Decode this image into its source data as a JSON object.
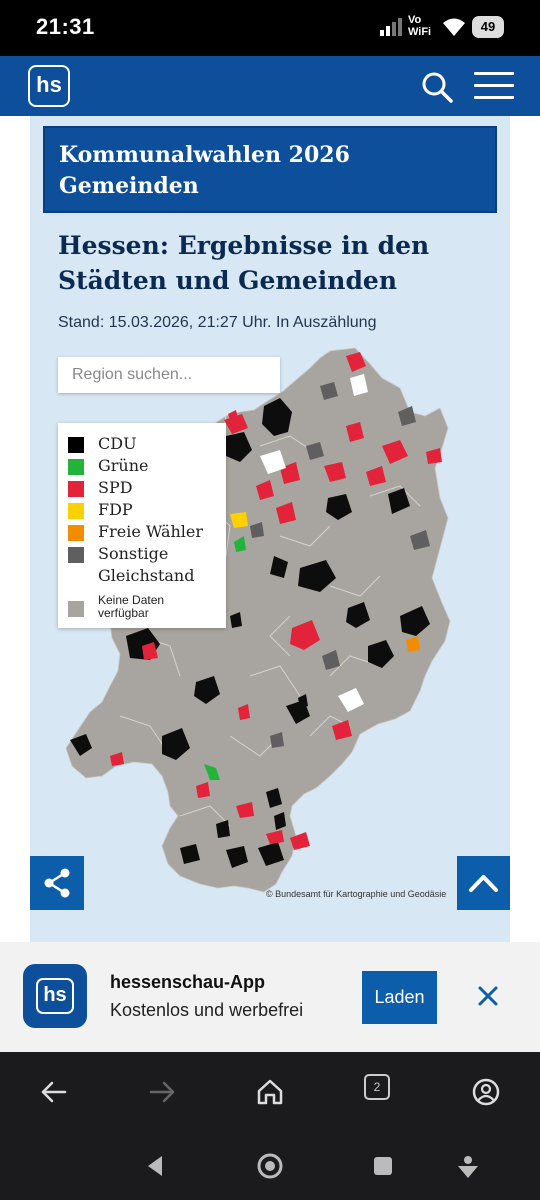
{
  "status_bar": {
    "time": "21:31",
    "network": "Vo WiFi",
    "battery": "49"
  },
  "header": {
    "logo": "hs",
    "search_icon": "search-icon",
    "menu_icon": "menu-icon",
    "brand_color": "#0d4f9a"
  },
  "article": {
    "banner_line1": "Kommunalwahlen 2026",
    "banner_line2": "Gemeinden",
    "headline": "Hessen: Ergebnisse in den Städten und Gemeinden",
    "stand": "Stand: 15.03.2026, 21:27 Uhr. In Auszählung"
  },
  "map": {
    "search_placeholder": "Region suchen...",
    "legend": [
      {
        "label": "CDU",
        "color": "#000000"
      },
      {
        "label": "Grüne",
        "color": "#22b33a"
      },
      {
        "label": "SPD",
        "color": "#e2233a"
      },
      {
        "label": "FDP",
        "color": "#ffd000"
      },
      {
        "label": "Freie Wähler",
        "color": "#f28c00"
      },
      {
        "label": "Sonstige",
        "color": "#5f5f5f"
      },
      {
        "label": "Gleichstand",
        "color": "#ffffff"
      },
      {
        "label": "Keine Daten verfügbar",
        "color": "#a8a5a0"
      }
    ],
    "attribution": "© Bundesamt für Kartographie und Geodäsie",
    "share_icon": "share-icon",
    "scroll_top_icon": "chevron-up-icon"
  },
  "app_banner": {
    "logo": "hs",
    "title": "hessenschau-App",
    "subtitle": "Kostenlos und werbefrei",
    "cta": "Laden",
    "close_icon": "close-icon"
  },
  "browser_bar": {
    "tab_count": "2",
    "icons": [
      "back-arrow-icon",
      "forward-arrow-icon",
      "home-icon",
      "tabs-icon",
      "account-icon"
    ]
  },
  "nav_bar": {
    "icons": [
      "back-triangle-icon",
      "home-circle-icon",
      "recents-square-icon",
      "assistant-icon"
    ]
  }
}
